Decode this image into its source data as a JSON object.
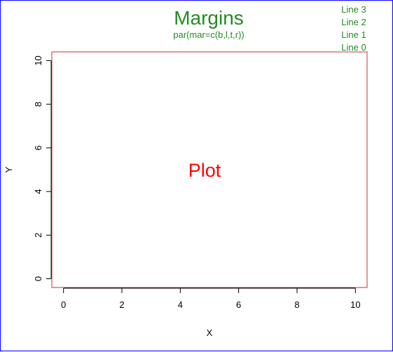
{
  "colors": {
    "frame": "#0000ff",
    "plot_box": "#c83232",
    "green_text": "#228b22",
    "plot_text": "#ff0000",
    "axis": "#000000"
  },
  "chart_data": {
    "type": "scatter",
    "title": "Margins",
    "subtitle": "par(mar=c(b,l,t,r))",
    "xlabel": "X",
    "ylabel": "Y",
    "xlim": [
      -0.4,
      10.4
    ],
    "ylim": [
      -0.4,
      10.4
    ],
    "x_ticks": [
      0,
      2,
      4,
      6,
      8,
      10
    ],
    "y_ticks": [
      0,
      2,
      4,
      6,
      8,
      10
    ],
    "grid": false,
    "plot_label": {
      "text": "Plot",
      "x": 5,
      "y": 5
    },
    "margin_lines": [
      "Line 3",
      "Line 2",
      "Line 1",
      "Line 0"
    ],
    "series": []
  }
}
